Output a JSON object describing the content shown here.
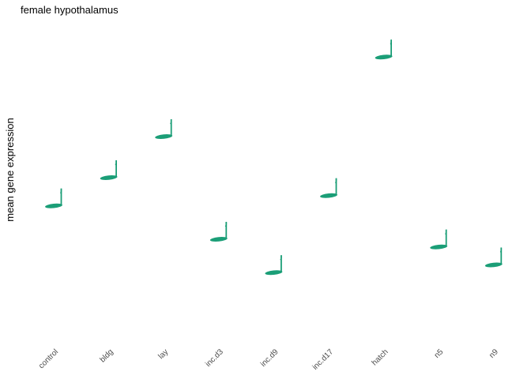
{
  "chart_data": {
    "type": "scatter",
    "title": "female hypothalamus",
    "xlabel": "",
    "ylabel": "mean gene expression",
    "categories": [
      "control",
      "bldg",
      "lay",
      "inc.d3",
      "inc.d9",
      "inc.d17",
      "hatch",
      "n5",
      "n9"
    ],
    "values": [
      4.9,
      6.0,
      7.6,
      3.6,
      2.3,
      5.3,
      10.7,
      3.3,
      2.6
    ],
    "ylim": [
      0,
      12
    ],
    "grid": false,
    "legend": "none",
    "marker": "eighth-note",
    "colors": {
      "marker": "#1b9e77",
      "tick_label": "#4d4d4d",
      "text": "#000000"
    }
  }
}
